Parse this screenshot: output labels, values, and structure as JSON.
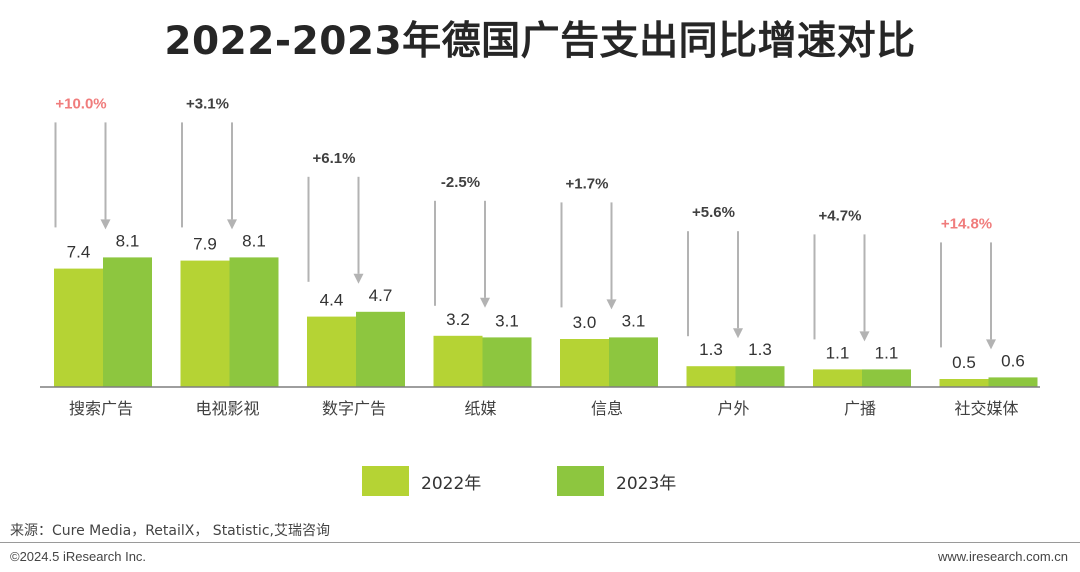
{
  "chart_data": {
    "type": "bar",
    "title": "2022-2023年德国广告支出同比增速对比",
    "categories": [
      "搜索广告",
      "电视影视",
      "数字广告",
      "纸媒",
      "信息",
      "户外",
      "广播",
      "社交媒体"
    ],
    "series": [
      {
        "name": "2022年",
        "color": "#b5d334",
        "values": [
          7.4,
          7.9,
          4.4,
          3.2,
          3.0,
          1.3,
          1.1,
          0.5
        ]
      },
      {
        "name": "2023年",
        "color": "#8dc63f",
        "values": [
          8.1,
          8.1,
          4.7,
          3.1,
          3.1,
          1.3,
          1.1,
          0.6
        ]
      }
    ],
    "value_labels": {
      "2022年": [
        "7.4",
        "7.9",
        "4.4",
        "3.2",
        "3.0",
        "1.3",
        "1.1",
        "0.5"
      ],
      "2023年": [
        "8.1",
        "8.1",
        "4.7",
        "3.1",
        "3.1",
        "1.3",
        "1.1",
        "0.6"
      ]
    },
    "growth_labels": [
      "+10.0%",
      "+3.1%",
      "+6.1%",
      "-2.5%",
      "+1.7%",
      "+5.6%",
      "+4.7%",
      "+14.8%"
    ],
    "growth_highlight": [
      true,
      false,
      false,
      false,
      false,
      false,
      false,
      true
    ],
    "highlight_color": "#f07c7c",
    "growth_text_color": "#404040",
    "arrow_color": "#b3b3b3",
    "ylim": [
      0,
      10
    ],
    "legend_position": "bottom",
    "grid": false
  },
  "source": "来源：Cure Media，RetailX， Statistic,艾瑞咨询",
  "copyright": "©2024.5 iResearch Inc.",
  "website": "www.iresearch.com.cn"
}
